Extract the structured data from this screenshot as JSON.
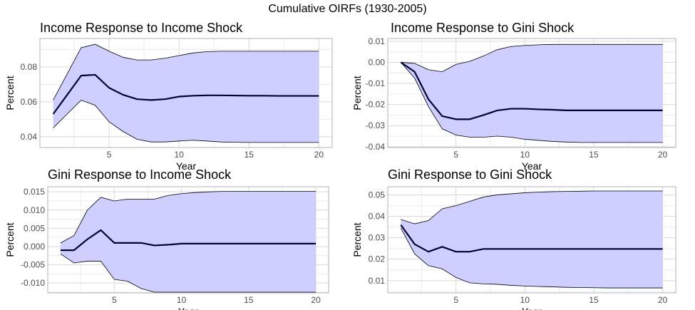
{
  "title": "Cumulative OIRFs (1930-2005)",
  "colors": {
    "band_fill": "#ccccff",
    "band_edge": "#000000",
    "line": "#000033",
    "grid_major": "#d9d9d9",
    "grid_minor": "#ececec",
    "panel_border": "#b3b3b3"
  },
  "chart_data": [
    {
      "type": "area",
      "title": "Income Response to Income Shock",
      "xlabel": "Year",
      "ylabel": "Percent",
      "xlim": [
        0.05,
        20.95
      ],
      "ylim": [
        0.0338,
        0.0963
      ],
      "xticks": [
        5,
        10,
        15,
        20
      ],
      "yticks": [
        0.04,
        0.06,
        0.08
      ],
      "ytick_labels": [
        "0.04",
        "0.06",
        "0.08"
      ],
      "x": [
        1,
        2,
        3,
        4,
        5,
        6,
        7,
        8,
        9,
        10,
        11,
        12,
        13,
        14,
        15,
        16,
        17,
        18,
        19,
        20
      ],
      "series": [
        {
          "name": "",
          "role": "upper",
          "values": [
            0.061,
            0.076,
            0.091,
            0.093,
            0.089,
            0.0855,
            0.084,
            0.084,
            0.085,
            0.0865,
            0.088,
            0.0888,
            0.089,
            0.089,
            0.089,
            0.089,
            0.089,
            0.089,
            0.089,
            0.089
          ]
        },
        {
          "name": "",
          "role": "estimate",
          "values": [
            0.053,
            0.064,
            0.075,
            0.0755,
            0.068,
            0.064,
            0.0615,
            0.061,
            0.0615,
            0.063,
            0.0635,
            0.0637,
            0.0637,
            0.0636,
            0.0635,
            0.0635,
            0.0634,
            0.0634,
            0.0634,
            0.0634
          ]
        },
        {
          "name": "",
          "role": "lower",
          "values": [
            0.045,
            0.053,
            0.061,
            0.058,
            0.0485,
            0.043,
            0.0385,
            0.037,
            0.037,
            0.0375,
            0.038,
            0.0375,
            0.037,
            0.0368,
            0.0367,
            0.0367,
            0.0367,
            0.0367,
            0.0367,
            0.0367
          ]
        }
      ]
    },
    {
      "type": "area",
      "title": "Income Response to Gini Shock",
      "xlabel": "Year",
      "ylabel": "Percent",
      "xlim": [
        0.05,
        20.95
      ],
      "ylim": [
        -0.0404,
        0.0113
      ],
      "xticks": [
        5,
        10,
        15,
        20
      ],
      "yticks": [
        -0.04,
        -0.03,
        -0.02,
        -0.01,
        0.0,
        0.01
      ],
      "ytick_labels": [
        "-0.04",
        "-0.03",
        "-0.02",
        "-0.01",
        "0.00",
        "0.01"
      ],
      "x": [
        1,
        2,
        3,
        4,
        5,
        6,
        7,
        8,
        9,
        10,
        11,
        12,
        13,
        14,
        15,
        16,
        17,
        18,
        19,
        20
      ],
      "series": [
        {
          "name": "",
          "role": "upper",
          "values": [
            0.0,
            -0.0005,
            -0.0035,
            -0.0045,
            -0.001,
            0.0005,
            0.003,
            0.006,
            0.0075,
            0.008,
            0.0083,
            0.0085,
            0.0085,
            0.0085,
            0.0085,
            0.0085,
            0.0085,
            0.0085,
            0.0085,
            0.0085
          ]
        },
        {
          "name": "",
          "role": "estimate",
          "values": [
            0.0,
            -0.0045,
            -0.0175,
            -0.0255,
            -0.027,
            -0.027,
            -0.025,
            -0.0228,
            -0.022,
            -0.022,
            -0.0223,
            -0.0225,
            -0.0228,
            -0.0228,
            -0.0228,
            -0.0228,
            -0.0228,
            -0.0228,
            -0.0228,
            -0.0228
          ]
        },
        {
          "name": "",
          "role": "lower",
          "values": [
            0.0,
            -0.0075,
            -0.021,
            -0.0315,
            -0.0345,
            -0.0355,
            -0.0355,
            -0.035,
            -0.0355,
            -0.0365,
            -0.037,
            -0.0375,
            -0.0378,
            -0.038,
            -0.038,
            -0.038,
            -0.038,
            -0.038,
            -0.038,
            -0.038
          ]
        }
      ]
    },
    {
      "type": "area",
      "title": "Gini Response to Income Shock",
      "xlabel": "Year",
      "ylabel": "Percent",
      "xlim": [
        0.05,
        20.95
      ],
      "ylim": [
        -0.0127,
        0.0164
      ],
      "xticks": [
        5,
        10,
        15,
        20
      ],
      "yticks": [
        -0.01,
        -0.005,
        0.0,
        0.005,
        0.01,
        0.015
      ],
      "ytick_labels": [
        "-0.010",
        "-0.005",
        "0.000",
        "0.005",
        "0.010",
        "0.015"
      ],
      "x": [
        1,
        2,
        3,
        4,
        5,
        6,
        7,
        8,
        9,
        10,
        11,
        12,
        13,
        14,
        15,
        16,
        17,
        18,
        19,
        20
      ],
      "series": [
        {
          "name": "",
          "role": "upper",
          "values": [
            0.001,
            0.003,
            0.01,
            0.0135,
            0.0125,
            0.013,
            0.013,
            0.013,
            0.014,
            0.0145,
            0.0148,
            0.015,
            0.0151,
            0.0151,
            0.0151,
            0.0151,
            0.0151,
            0.0151,
            0.0151,
            0.0151
          ]
        },
        {
          "name": "",
          "role": "estimate",
          "values": [
            -0.001,
            -0.001,
            0.002,
            0.0045,
            0.001,
            0.001,
            0.001,
            0.0003,
            0.0005,
            0.0008,
            0.0008,
            0.0008,
            0.0008,
            0.0008,
            0.0008,
            0.0008,
            0.0008,
            0.0008,
            0.0008,
            0.0008
          ]
        },
        {
          "name": "",
          "role": "lower",
          "values": [
            -0.002,
            -0.0045,
            -0.004,
            -0.004,
            -0.009,
            -0.0095,
            -0.0115,
            -0.0125,
            -0.0125,
            -0.0125,
            -0.0125,
            -0.0125,
            -0.0125,
            -0.0125,
            -0.0125,
            -0.0125,
            -0.0125,
            -0.0125,
            -0.0125,
            -0.0125
          ]
        }
      ]
    },
    {
      "type": "area",
      "title": "Gini Response to Gini Shock",
      "xlabel": "Year",
      "ylabel": "Percent",
      "xlim": [
        0.05,
        20.95
      ],
      "ylim": [
        0.0043,
        0.0538
      ],
      "xticks": [
        5,
        10,
        15,
        20
      ],
      "yticks": [
        0.01,
        0.02,
        0.03,
        0.04,
        0.05
      ],
      "ytick_labels": [
        "0.01",
        "0.02",
        "0.03",
        "0.04",
        "0.05"
      ],
      "x": [
        1,
        2,
        3,
        4,
        5,
        6,
        7,
        8,
        9,
        10,
        11,
        12,
        13,
        14,
        15,
        16,
        17,
        18,
        19,
        20
      ],
      "series": [
        {
          "name": "",
          "role": "upper",
          "values": [
            0.0385,
            0.0365,
            0.038,
            0.0435,
            0.045,
            0.047,
            0.049,
            0.05,
            0.0505,
            0.051,
            0.0513,
            0.0515,
            0.0516,
            0.0517,
            0.0518,
            0.0518,
            0.0518,
            0.0518,
            0.0518,
            0.0518
          ]
        },
        {
          "name": "",
          "role": "estimate",
          "values": [
            0.036,
            0.027,
            0.0235,
            0.0258,
            0.0235,
            0.0235,
            0.0248,
            0.0248,
            0.0248,
            0.0248,
            0.0248,
            0.0248,
            0.0248,
            0.0248,
            0.0248,
            0.0248,
            0.0248,
            0.0248,
            0.0248,
            0.0248
          ]
        },
        {
          "name": "",
          "role": "lower",
          "values": [
            0.0345,
            0.0225,
            0.017,
            0.0155,
            0.0115,
            0.009,
            0.0085,
            0.0083,
            0.0078,
            0.0075,
            0.0073,
            0.0071,
            0.0069,
            0.0068,
            0.0067,
            0.0066,
            0.0066,
            0.0066,
            0.0066,
            0.0066
          ]
        }
      ]
    }
  ]
}
